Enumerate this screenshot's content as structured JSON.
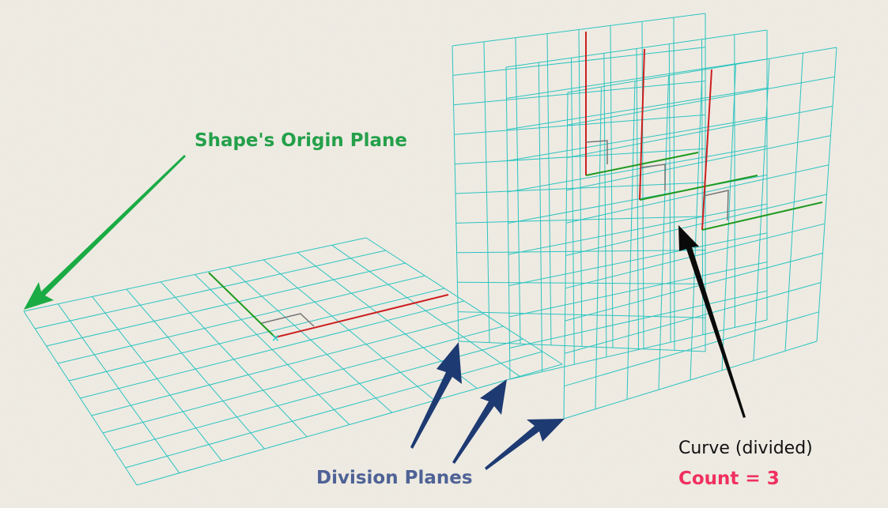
{
  "labels": {
    "origin_plane": "Shape's Origin Plane",
    "division_planes": "Division Planes",
    "curve": "Curve (divided)",
    "count": "Count = 3"
  },
  "colors": {
    "background": "#efece4",
    "grid": "#2cc4c0",
    "x_axis": "#cc1f1f",
    "y_axis": "#1f9a1f",
    "origin_label": "#24a04a",
    "origin_arrow": "#1bab45",
    "division_label": "#4f6296",
    "division_arrow": "#1e3a72",
    "curve_label": "#111111",
    "curve_arrow": "#0a0a0a",
    "count_label": "#f0305f",
    "right_angle_marker": "#777777",
    "origin_point": "#2bd0cf"
  },
  "icons": {
    "origin_arrow": "arrow-icon",
    "division_arrows": "arrow-icon",
    "curve_arrow": "arrow-icon"
  }
}
